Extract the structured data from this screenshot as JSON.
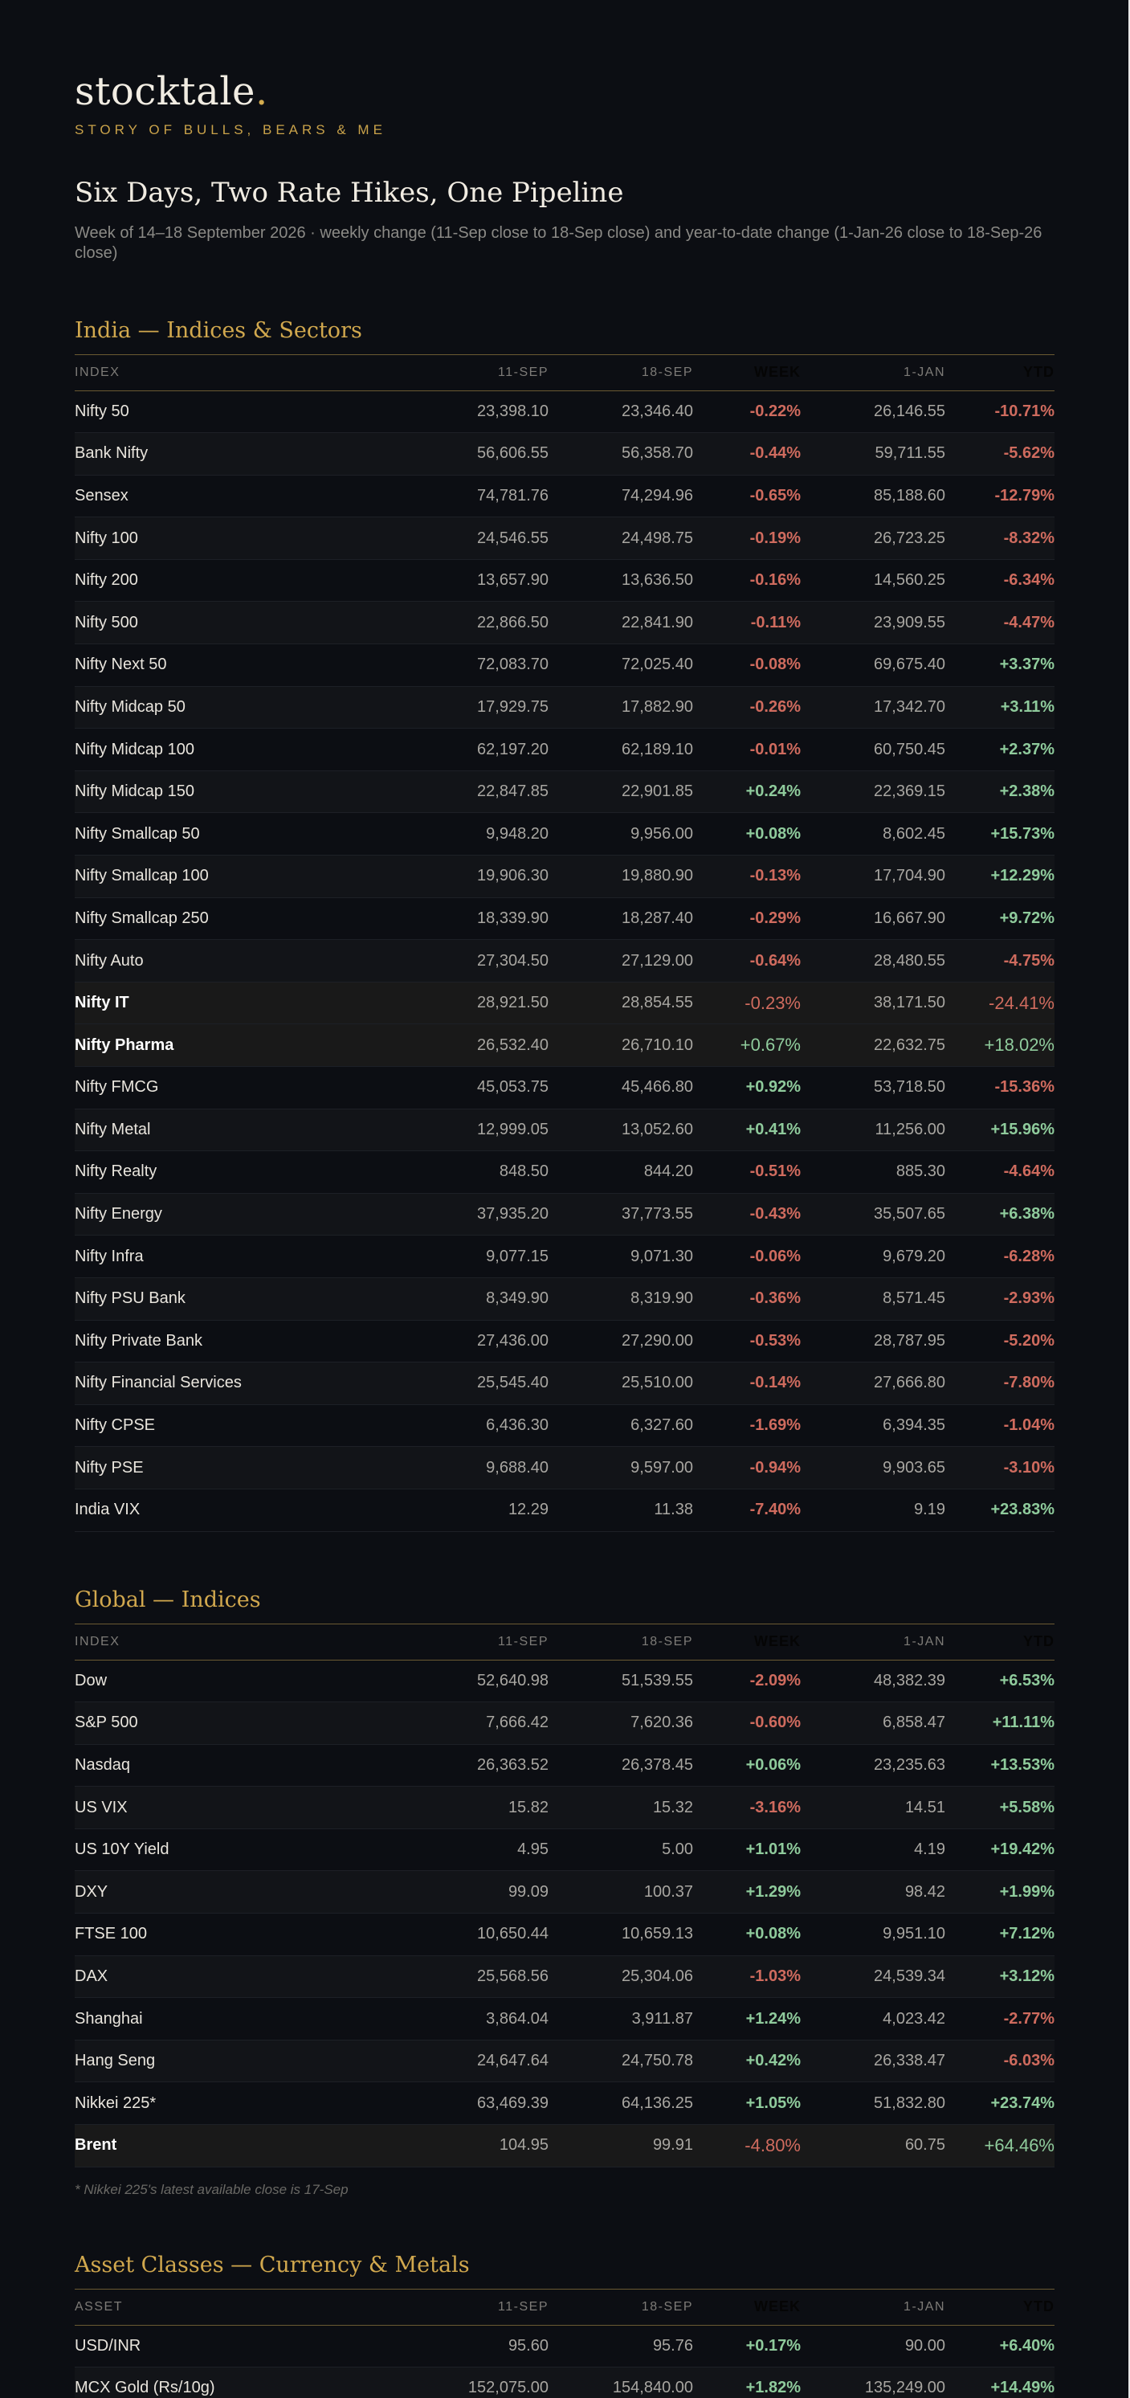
{
  "brand": {
    "name": "stocktale",
    "dot": ".",
    "tagline": "STORY OF BULLS, BEARS & ME"
  },
  "week": {
    "title": "Six Days, Two Rate Hikes, One Pipeline",
    "subtitle": "Week of 14–18 September 2026  ·  weekly change (11-Sep close to 18-Sep close) and year-to-date change (1-Jan-26 close to 18-Sep-26 close)"
  },
  "colors": {
    "background": "#0c0e13",
    "gold": "#d1a84e",
    "negative": "#cf6b5e",
    "positive": "#8fcb9c"
  },
  "india": {
    "title": "India — Indices & Sectors",
    "headers": [
      "INDEX",
      "11-SEP",
      "18-SEP",
      "WEEK",
      "1-JAN",
      "YTD"
    ],
    "rows": [
      {
        "name": "Nifty 50",
        "sep11": "23,398.10",
        "sep18": "23,346.40",
        "week": "-0.22%",
        "jan1": "26,146.55",
        "ytd": "-10.71%"
      },
      {
        "name": "Bank Nifty",
        "sep11": "56,606.55",
        "sep18": "56,358.70",
        "week": "-0.44%",
        "jan1": "59,711.55",
        "ytd": "-5.62%"
      },
      {
        "name": "Sensex",
        "sep11": "74,781.76",
        "sep18": "74,294.96",
        "week": "-0.65%",
        "jan1": "85,188.60",
        "ytd": "-12.79%"
      },
      {
        "name": "Nifty 100",
        "sep11": "24,546.55",
        "sep18": "24,498.75",
        "week": "-0.19%",
        "jan1": "26,723.25",
        "ytd": "-8.32%"
      },
      {
        "name": "Nifty 200",
        "sep11": "13,657.90",
        "sep18": "13,636.50",
        "week": "-0.16%",
        "jan1": "14,560.25",
        "ytd": "-6.34%"
      },
      {
        "name": "Nifty 500",
        "sep11": "22,866.50",
        "sep18": "22,841.90",
        "week": "-0.11%",
        "jan1": "23,909.55",
        "ytd": "-4.47%"
      },
      {
        "name": "Nifty Next 50",
        "sep11": "72,083.70",
        "sep18": "72,025.40",
        "week": "-0.08%",
        "jan1": "69,675.40",
        "ytd": "+3.37%"
      },
      {
        "name": "Nifty Midcap 50",
        "sep11": "17,929.75",
        "sep18": "17,882.90",
        "week": "-0.26%",
        "jan1": "17,342.70",
        "ytd": "+3.11%"
      },
      {
        "name": "Nifty Midcap 100",
        "sep11": "62,197.20",
        "sep18": "62,189.10",
        "week": "-0.01%",
        "jan1": "60,750.45",
        "ytd": "+2.37%"
      },
      {
        "name": "Nifty Midcap 150",
        "sep11": "22,847.85",
        "sep18": "22,901.85",
        "week": "+0.24%",
        "jan1": "22,369.15",
        "ytd": "+2.38%"
      },
      {
        "name": "Nifty Smallcap 50",
        "sep11": "9,948.20",
        "sep18": "9,956.00",
        "week": "+0.08%",
        "jan1": "8,602.45",
        "ytd": "+15.73%"
      },
      {
        "name": "Nifty Smallcap 100",
        "sep11": "19,906.30",
        "sep18": "19,880.90",
        "week": "-0.13%",
        "jan1": "17,704.90",
        "ytd": "+12.29%"
      },
      {
        "name": "Nifty Smallcap 250",
        "sep11": "18,339.90",
        "sep18": "18,287.40",
        "week": "-0.29%",
        "jan1": "16,667.90",
        "ytd": "+9.72%"
      },
      {
        "name": "Nifty Auto",
        "sep11": "27,304.50",
        "sep18": "27,129.00",
        "week": "-0.64%",
        "jan1": "28,480.55",
        "ytd": "-4.75%"
      },
      {
        "name": "Nifty IT",
        "sep11": "28,921.50",
        "sep18": "28,854.55",
        "week": "-0.23%",
        "jan1": "38,171.50",
        "ytd": "-24.41%",
        "highlight": true
      },
      {
        "name": "Nifty Pharma",
        "sep11": "26,532.40",
        "sep18": "26,710.10",
        "week": "+0.67%",
        "jan1": "22,632.75",
        "ytd": "+18.02%",
        "highlight": true
      },
      {
        "name": "Nifty FMCG",
        "sep11": "45,053.75",
        "sep18": "45,466.80",
        "week": "+0.92%",
        "jan1": "53,718.50",
        "ytd": "-15.36%"
      },
      {
        "name": "Nifty Metal",
        "sep11": "12,999.05",
        "sep18": "13,052.60",
        "week": "+0.41%",
        "jan1": "11,256.00",
        "ytd": "+15.96%"
      },
      {
        "name": "Nifty Realty",
        "sep11": "848.50",
        "sep18": "844.20",
        "week": "-0.51%",
        "jan1": "885.30",
        "ytd": "-4.64%"
      },
      {
        "name": "Nifty Energy",
        "sep11": "37,935.20",
        "sep18": "37,773.55",
        "week": "-0.43%",
        "jan1": "35,507.65",
        "ytd": "+6.38%"
      },
      {
        "name": "Nifty Infra",
        "sep11": "9,077.15",
        "sep18": "9,071.30",
        "week": "-0.06%",
        "jan1": "9,679.20",
        "ytd": "-6.28%"
      },
      {
        "name": "Nifty PSU Bank",
        "sep11": "8,349.90",
        "sep18": "8,319.90",
        "week": "-0.36%",
        "jan1": "8,571.45",
        "ytd": "-2.93%"
      },
      {
        "name": "Nifty Private Bank",
        "sep11": "27,436.00",
        "sep18": "27,290.00",
        "week": "-0.53%",
        "jan1": "28,787.95",
        "ytd": "-5.20%"
      },
      {
        "name": "Nifty Financial Services",
        "sep11": "25,545.40",
        "sep18": "25,510.00",
        "week": "-0.14%",
        "jan1": "27,666.80",
        "ytd": "-7.80%"
      },
      {
        "name": "Nifty CPSE",
        "sep11": "6,436.30",
        "sep18": "6,327.60",
        "week": "-1.69%",
        "jan1": "6,394.35",
        "ytd": "-1.04%"
      },
      {
        "name": "Nifty PSE",
        "sep11": "9,688.40",
        "sep18": "9,597.00",
        "week": "-0.94%",
        "jan1": "9,903.65",
        "ytd": "-3.10%"
      },
      {
        "name": "India VIX",
        "sep11": "12.29",
        "sep18": "11.38",
        "week": "-7.40%",
        "jan1": "9.19",
        "ytd": "+23.83%"
      }
    ]
  },
  "global": {
    "title": "Global — Indices",
    "headers": [
      "INDEX",
      "11-SEP",
      "18-SEP",
      "WEEK",
      "1-JAN",
      "YTD"
    ],
    "rows": [
      {
        "name": "Dow",
        "sep11": "52,640.98",
        "sep18": "51,539.55",
        "week": "-2.09%",
        "jan1": "48,382.39",
        "ytd": "+6.53%"
      },
      {
        "name": "S&P 500",
        "sep11": "7,666.42",
        "sep18": "7,620.36",
        "week": "-0.60%",
        "jan1": "6,858.47",
        "ytd": "+11.11%"
      },
      {
        "name": "Nasdaq",
        "sep11": "26,363.52",
        "sep18": "26,378.45",
        "week": "+0.06%",
        "jan1": "23,235.63",
        "ytd": "+13.53%"
      },
      {
        "name": "US VIX",
        "sep11": "15.82",
        "sep18": "15.32",
        "week": "-3.16%",
        "jan1": "14.51",
        "ytd": "+5.58%"
      },
      {
        "name": "US 10Y Yield",
        "sep11": "4.95",
        "sep18": "5.00",
        "week": "+1.01%",
        "jan1": "4.19",
        "ytd": "+19.42%"
      },
      {
        "name": "DXY",
        "sep11": "99.09",
        "sep18": "100.37",
        "week": "+1.29%",
        "jan1": "98.42",
        "ytd": "+1.99%"
      },
      {
        "name": "FTSE 100",
        "sep11": "10,650.44",
        "sep18": "10,659.13",
        "week": "+0.08%",
        "jan1": "9,951.10",
        "ytd": "+7.12%"
      },
      {
        "name": "DAX",
        "sep11": "25,568.56",
        "sep18": "25,304.06",
        "week": "-1.03%",
        "jan1": "24,539.34",
        "ytd": "+3.12%"
      },
      {
        "name": "Shanghai",
        "sep11": "3,864.04",
        "sep18": "3,911.87",
        "week": "+1.24%",
        "jan1": "4,023.42",
        "ytd": "-2.77%"
      },
      {
        "name": "Hang Seng",
        "sep11": "24,647.64",
        "sep18": "24,750.78",
        "week": "+0.42%",
        "jan1": "26,338.47",
        "ytd": "-6.03%"
      },
      {
        "name": "Nikkei 225*",
        "sep11": "63,469.39",
        "sep18": "64,136.25",
        "week": "+1.05%",
        "jan1": "51,832.80",
        "ytd": "+23.74%"
      },
      {
        "name": "Brent",
        "sep11": "104.95",
        "sep18": "99.91",
        "week": "-4.80%",
        "jan1": "60.75",
        "ytd": "+64.46%",
        "highlight": true
      }
    ],
    "footnote": "* Nikkei 225's latest available close is 17-Sep"
  },
  "assets": {
    "title": "Asset Classes — Currency & Metals",
    "headers": [
      "ASSET",
      "11-SEP",
      "18-SEP",
      "WEEK",
      "1-JAN",
      "YTD"
    ],
    "rows": [
      {
        "name": "USD/INR",
        "sep11": "95.60",
        "sep18": "95.76",
        "week": "+0.17%",
        "jan1": "90.00",
        "ytd": "+6.40%"
      },
      {
        "name": "MCX Gold (Rs/10g)",
        "sep11": "152,075.00",
        "sep18": "154,840.00",
        "week": "+1.82%",
        "jan1": "135,249.00",
        "ytd": "+14.49%"
      }
    ]
  }
}
